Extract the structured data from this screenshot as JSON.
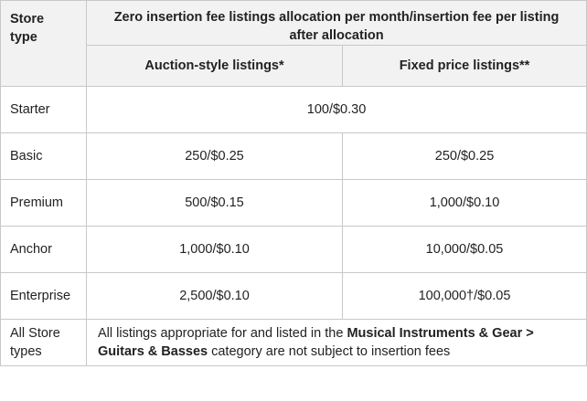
{
  "header": {
    "store_type_line1": "Store",
    "store_type_line2": "type",
    "main_title": "Zero insertion fee listings allocation per month/insertion fee per listing after allocation",
    "auction_col": "Auction-style listings*",
    "fixed_col": "Fixed price listings**"
  },
  "rows": [
    {
      "type": "Starter",
      "combined": "100/$0.30"
    },
    {
      "type": "Basic",
      "auction": "250/$0.25",
      "fixed": "250/$0.25"
    },
    {
      "type": "Premium",
      "auction": "500/$0.15",
      "fixed": "1,000/$0.10"
    },
    {
      "type": "Anchor",
      "auction": "1,000/$0.10",
      "fixed": "10,000/$0.05"
    },
    {
      "type": "Enterprise",
      "auction": "2,500/$0.10",
      "fixed": "100,000†/$0.05"
    }
  ],
  "all_types": {
    "label_line1": "All Store",
    "label_line2": "types",
    "note_prefix": "All listings appropriate for and listed in the ",
    "note_bold": "Musical Instruments & Gear > Guitars & Basses",
    "note_suffix": " category are not subject to insertion fees"
  }
}
